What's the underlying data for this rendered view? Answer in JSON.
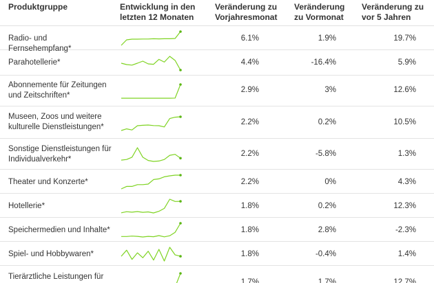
{
  "colors": {
    "sparkline": "#7ed321",
    "endpoint": "#5cb615"
  },
  "headers": {
    "group": "Produktgruppe",
    "trend": "Entwicklung in den letzten 12 Monaten",
    "yoy": "Veränderung zu Vorjahresmonat",
    "mom": "Veränderung zu Vormonat",
    "five_years": "Veränderung zu vor 5 Jahren"
  },
  "rows": [
    {
      "name": "Radio- und Fernsehempfang*",
      "yoy": "6.1%",
      "mom": "1.9%",
      "five": "19.7%",
      "trend": [
        0,
        4,
        4.5,
        4.5,
        4.6,
        4.6,
        4.8,
        4.7,
        4.8,
        4.8,
        5,
        10
      ]
    },
    {
      "name": "Parahotellerie*",
      "yoy": "4.4%",
      "mom": "-16.4%",
      "five": "5.9%",
      "trend": [
        5,
        4,
        3.6,
        5,
        6.5,
        4.5,
        4.2,
        7.8,
        5.8,
        10,
        7,
        0
      ]
    },
    {
      "name": "Abonnemente für Zeitungen und Zeitschriften*",
      "yoy": "2.9%",
      "mom": "3%",
      "five": "12.6%",
      "trend": [
        0,
        0,
        0,
        0,
        0,
        0,
        0,
        0,
        0,
        0,
        0.1,
        10
      ]
    },
    {
      "name": "Museen, Zoos und weitere kulturelle Dienstleistungen*",
      "yoy": "2.2%",
      "mom": "0.2%",
      "five": "10.5%",
      "trend": [
        0,
        1.2,
        0.4,
        3.5,
        3.8,
        4,
        3.6,
        3.5,
        2.6,
        8.7,
        9.7,
        10
      ]
    },
    {
      "name": "Sonstige Dienstleistungen für Individualverkehr*",
      "yoy": "2.2%",
      "mom": "-5.8%",
      "five": "1.3%",
      "trend": [
        3.5,
        3.8,
        5,
        10,
        5,
        3.3,
        2.8,
        3,
        3.8,
        6,
        6.5,
        4.5
      ]
    },
    {
      "name": "Theater und Konzerte*",
      "yoy": "2.2%",
      "mom": "0%",
      "five": "4.3%",
      "trend": [
        0,
        1.8,
        1.8,
        3.1,
        3.1,
        3.5,
        6.8,
        7.3,
        8.8,
        9.5,
        10,
        10
      ]
    },
    {
      "name": "Hotellerie*",
      "yoy": "1.8%",
      "mom": "0.2%",
      "five": "12.3%",
      "trend": [
        1,
        1.7,
        1.4,
        1.8,
        1.3,
        1.6,
        0.9,
        2,
        3.9,
        10,
        8.5,
        8.6
      ]
    },
    {
      "name": "Speichermedien und Inhalte*",
      "yoy": "1.8%",
      "mom": "2.8%",
      "five": "-2.3%",
      "trend": [
        1.2,
        1.2,
        1.5,
        1.3,
        0.9,
        1.3,
        1.1,
        1.8,
        1,
        1.7,
        4,
        10
      ]
    },
    {
      "name": "Spiel- und Hobbywaren*",
      "yoy": "1.8%",
      "mom": "-0.4%",
      "five": "1.4%",
      "trend": [
        3.5,
        7.9,
        1.3,
        6,
        2.5,
        7.2,
        0.8,
        8.5,
        0.1,
        10,
        4.5,
        3.5
      ]
    },
    {
      "name": "Tierärztliche Leistungen für Haustiere*",
      "yoy": "1.7%",
      "mom": "1.7%",
      "five": "12.7%",
      "trend": [
        0,
        0,
        0,
        0,
        0,
        0,
        0,
        0,
        0,
        0,
        0.1,
        10
      ]
    }
  ]
}
